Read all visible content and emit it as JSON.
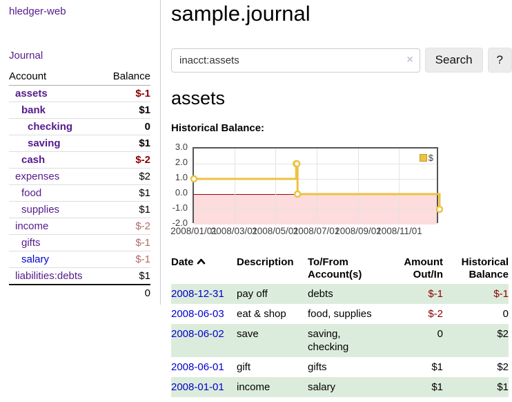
{
  "brand": {
    "label": "hledger-web"
  },
  "sidebar": {
    "journal_link": "Journal",
    "accounts": {
      "header_account": "Account",
      "header_balance": "Balance",
      "rows": [
        {
          "name": "assets",
          "depth": 0,
          "bold": true,
          "link_color": "purple",
          "balance": "$-1",
          "balance_class": "strong-neg"
        },
        {
          "name": "bank",
          "depth": 1,
          "bold": true,
          "link_color": "purple",
          "balance": "$1",
          "balance_class": "plain"
        },
        {
          "name": "checking",
          "depth": 2,
          "bold": true,
          "link_color": "purple",
          "balance": "0",
          "balance_class": "plain"
        },
        {
          "name": "saving",
          "depth": 2,
          "bold": true,
          "link_color": "purple",
          "balance": "$1",
          "balance_class": "plain"
        },
        {
          "name": "cash",
          "depth": 1,
          "bold": true,
          "link_color": "purple",
          "balance": "$-2",
          "balance_class": "strong-neg"
        },
        {
          "name": "expenses",
          "depth": 0,
          "bold": false,
          "link_color": "purple",
          "balance": "$2",
          "balance_class": "plain"
        },
        {
          "name": "food",
          "depth": 1,
          "bold": false,
          "link_color": "purple",
          "balance": "$1",
          "balance_class": "plain"
        },
        {
          "name": "supplies",
          "depth": 1,
          "bold": false,
          "link_color": "purple",
          "balance": "$1",
          "balance_class": "plain"
        },
        {
          "name": "income",
          "depth": 0,
          "bold": false,
          "link_color": "purple",
          "balance": "$-2",
          "balance_class": "soft-neg"
        },
        {
          "name": "gifts",
          "depth": 1,
          "bold": false,
          "link_color": "purple",
          "balance": "$-1",
          "balance_class": "soft-neg"
        },
        {
          "name": "salary",
          "depth": 1,
          "bold": false,
          "link_color": "blue",
          "balance": "$-1",
          "balance_class": "soft-neg"
        },
        {
          "name": "liabilities:debts",
          "depth": 0,
          "bold": false,
          "link_color": "purple",
          "balance": "$1",
          "balance_class": "plain"
        }
      ],
      "total": "0"
    }
  },
  "page": {
    "title": "sample.journal",
    "account_title": "assets",
    "chart_heading": "Historical Balance:"
  },
  "search": {
    "value": "inacct:assets",
    "clear_label": "×",
    "search_button": "Search",
    "help_button": "?"
  },
  "chart_data": {
    "type": "line",
    "step": true,
    "title": "Historical Balance",
    "xlabel": "",
    "ylabel": "",
    "x_range": [
      "2008-01-01",
      "2008-12-31"
    ],
    "ylim": [
      -2,
      3
    ],
    "yticks": [
      "3.0",
      "2.0",
      "1.0",
      "0.0",
      "-1.0",
      "-2.0"
    ],
    "xticks": [
      "2008/01/01",
      "2008/03/01",
      "2008/05/01",
      "2008/07/01",
      "2008/09/01",
      "2008/11/01"
    ],
    "grid": true,
    "legend_position": "top-right",
    "series": [
      {
        "name": "$",
        "color": "#edc240",
        "points": [
          [
            "2008-01-01",
            1
          ],
          [
            "2008-06-01",
            2
          ],
          [
            "2008-06-02",
            2
          ],
          [
            "2008-06-03",
            0
          ],
          [
            "2008-12-31",
            -1
          ]
        ]
      }
    ],
    "negative_region_color": "#fcdcdc",
    "zero_line_color": "#a40000"
  },
  "register": {
    "headers": [
      {
        "line1": "Date",
        "line2": ""
      },
      {
        "line1": "Description",
        "line2": ""
      },
      {
        "line1": "To/From",
        "line2": "Account(s)"
      },
      {
        "line1": "Amount",
        "line2": "Out/In"
      },
      {
        "line1": "Historical",
        "line2": "Balance"
      }
    ],
    "rows": [
      {
        "date": "2008-12-31",
        "description": "pay off",
        "accounts": "debts",
        "amount": "$-1",
        "amount_neg": true,
        "balance": "$-1",
        "balance_neg": true,
        "green": true
      },
      {
        "date": "2008-06-03",
        "description": "eat & shop",
        "accounts": "food, supplies",
        "amount": "$-2",
        "amount_neg": true,
        "balance": "0",
        "balance_neg": false,
        "green": false
      },
      {
        "date": "2008-06-02",
        "description": "save",
        "accounts": "saving, checking",
        "amount": "0",
        "amount_neg": false,
        "balance": "$2",
        "balance_neg": false,
        "green": true
      },
      {
        "date": "2008-06-01",
        "description": "gift",
        "accounts": "gifts",
        "amount": "$1",
        "amount_neg": false,
        "balance": "$2",
        "balance_neg": false,
        "green": false
      },
      {
        "date": "2008-01-01",
        "description": "income",
        "accounts": "salary",
        "amount": "$1",
        "amount_neg": false,
        "balance": "$1",
        "balance_neg": false,
        "green": true
      }
    ]
  },
  "colors": {
    "link_purple": "#551a8b",
    "link_blue": "#0000cc",
    "negative_strong": "#8b0000",
    "negative_soft": "#b06a66",
    "row_green": "#dcecdc",
    "series_yellow": "#edc240"
  }
}
